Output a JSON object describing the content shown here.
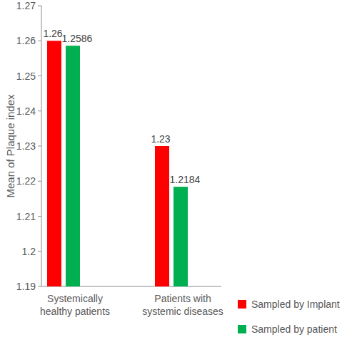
{
  "chart_data": {
    "type": "bar",
    "y_label": "Mean of Plaque index",
    "categories": [
      "Systemically healthy patients",
      "Patients with systemic diseases"
    ],
    "series": [
      {
        "name": "Sampled by Implant",
        "color": "#ff0000",
        "values": [
          1.26,
          1.23
        ]
      },
      {
        "name": "Sampled by patient",
        "color": "#00b050",
        "values": [
          1.2586,
          1.2184
        ]
      }
    ],
    "ylim": [
      1.19,
      1.27
    ],
    "yticks": [
      1.19,
      1.2,
      1.21,
      1.22,
      1.23,
      1.24,
      1.25,
      1.26,
      1.27
    ],
    "grid": false,
    "legend": "bottom-right",
    "data_labels": true
  }
}
